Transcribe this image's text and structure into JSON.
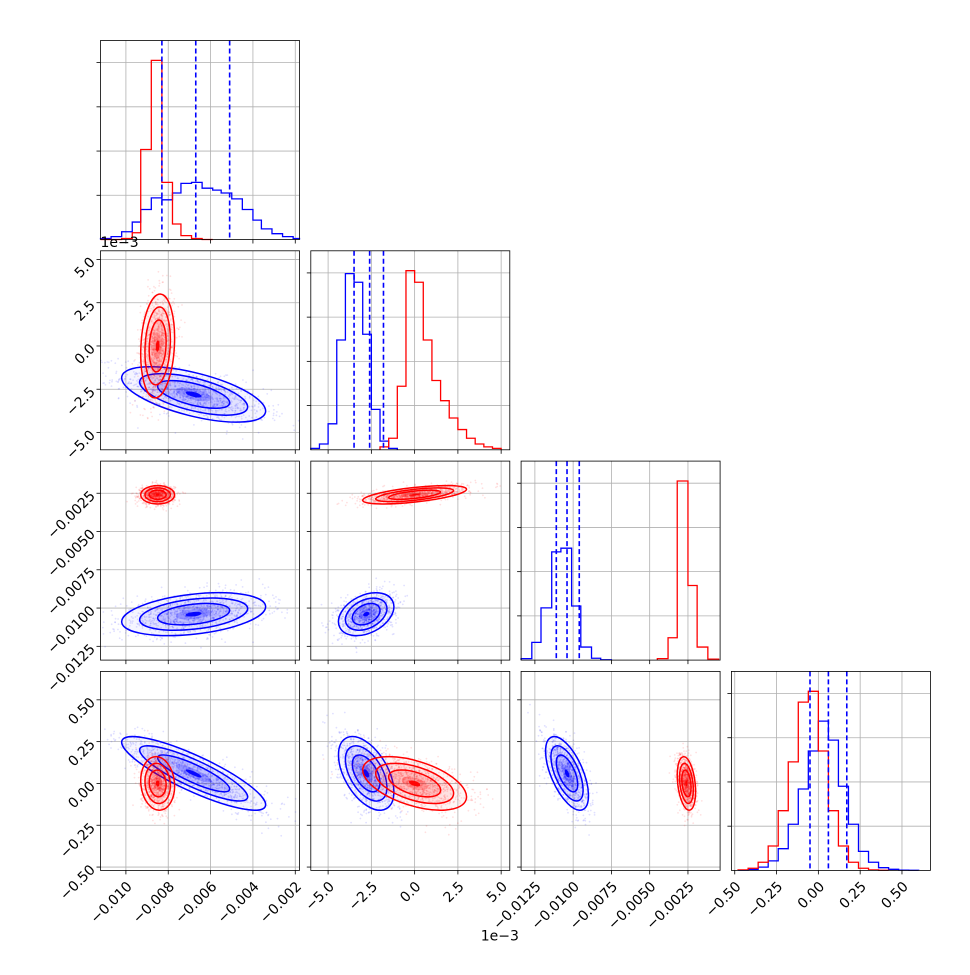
{
  "chart_data": {
    "type": "corner",
    "grid": true,
    "colors": {
      "series_a": "#0000ff",
      "series_b": "#ff0000"
    },
    "params": [
      {
        "range": [
          -0.0112,
          -0.0018
        ],
        "ticks": [
          -0.01,
          -0.008,
          -0.006,
          -0.004,
          -0.002
        ],
        "tick_labels": [
          "−0.010",
          "−0.008",
          "−0.006",
          "−0.004",
          "−0.002"
        ],
        "offset": ""
      },
      {
        "range": [
          -6.0,
          5.5
        ],
        "ticks": [
          -5.0,
          -2.5,
          0.0,
          2.5,
          5.0
        ],
        "tick_labels": [
          "−5.0",
          "−2.5",
          "0.0",
          "2.5",
          "5.0"
        ],
        "offset": "1e−3"
      },
      {
        "range": [
          -0.0134,
          -0.0004
        ],
        "ticks": [
          -0.0125,
          -0.01,
          -0.0075,
          -0.005,
          -0.0025
        ],
        "tick_labels": [
          "−0.0125",
          "−0.0100",
          "−0.0075",
          "−0.0050",
          "−0.0025"
        ],
        "offset": ""
      },
      {
        "range": [
          -0.52,
          0.67
        ],
        "ticks": [
          -0.5,
          -0.25,
          0.0,
          0.25,
          0.5
        ],
        "tick_labels": [
          "−0.50",
          "−0.25",
          "0.00",
          "0.25",
          "0.50"
        ],
        "offset": ""
      }
    ],
    "series": [
      {
        "color": "#0000ff",
        "means": [
          -0.0068,
          -2.8,
          -0.0104,
          0.06
        ],
        "sds": [
          0.0017,
          0.8,
          0.0007,
          0.11
        ],
        "quantiles": [
          [
            -0.0083,
            -0.0067,
            -0.0051
          ],
          [
            -3.5,
            -2.6,
            -1.8
          ],
          [
            -0.0111,
            -0.0104,
            -0.0096
          ],
          [
            -0.05,
            0.06,
            0.17
          ]
        ],
        "corr": {
          "0-1": -0.6,
          "0-2": 0.35,
          "0-3": -0.85,
          "1-2": 0.35,
          "1-3": -0.5,
          "2-3": -0.6
        },
        "hist": [
          {
            "edges": [
              -0.0112,
              -0.0107,
              -0.0102,
              -0.0097,
              -0.0093,
              -0.0088,
              -0.0083,
              -0.0078,
              -0.0074,
              -0.0069,
              -0.0064,
              -0.0059,
              -0.0055,
              -0.005,
              -0.0045,
              -0.004,
              -0.0036,
              -0.0031,
              -0.0026,
              -0.0021,
              -0.0018
            ],
            "counts": [
              0.2,
              0.6,
              1.6,
              3.6,
              6.2,
              8.6,
              8.2,
              9.6,
              11.6,
              11.8,
              10.6,
              10.2,
              9.6,
              8.4,
              6.2,
              4.0,
              2.2,
              1.2,
              0.6,
              0.2
            ]
          },
          {
            "edges": [
              -6.0,
              -5.5,
              -5.0,
              -4.5,
              -4.0,
              -3.5,
              -3.0,
              -2.5,
              -2.0,
              -1.5,
              -1.0
            ],
            "counts": [
              0.5,
              2.0,
              9.0,
              38.0,
              61.0,
              58.0,
              40.0,
              14.0,
              3.0,
              0.5
            ]
          },
          {
            "edges": [
              -0.0134,
              -0.0127,
              -0.0121,
              -0.0114,
              -0.0108,
              -0.0101,
              -0.0095,
              -0.0088,
              -0.0082,
              -0.0075
            ],
            "counts": [
              0.8,
              9.5,
              28.0,
              58.0,
              60.0,
              29.0,
              7.0,
              1.0,
              0.2
            ]
          },
          {
            "edges": [
              -0.48,
              -0.42,
              -0.36,
              -0.3,
              -0.24,
              -0.18,
              -0.12,
              -0.06,
              0.0,
              0.06,
              0.12,
              0.18,
              0.24,
              0.3,
              0.36,
              0.42,
              0.48,
              0.54,
              0.6
            ],
            "counts": [
              0.1,
              0.4,
              1.2,
              3.5,
              8.0,
              17.0,
              30.0,
              44.0,
              55.0,
              48.0,
              31.0,
              17.0,
              7.0,
              3.0,
              1.0,
              0.4,
              0.1,
              0.05
            ]
          }
        ]
      },
      {
        "color": "#ff0000",
        "means": [
          -0.0085,
          0.0,
          -0.0026,
          0.0
        ],
        "sds": [
          0.0004,
          1.5,
          0.0003,
          0.08
        ],
        "quantiles": [
          [
            -0.0089,
            -0.0085,
            -0.0081
          ],
          [
            -1.0,
            0.0,
            1.2
          ],
          [
            -0.0029,
            -0.0026,
            -0.0023
          ],
          [
            -0.07,
            0.0,
            0.07
          ]
        ],
        "corr": {
          "0-1": 0.15,
          "0-2": 0.0,
          "0-3": -0.1,
          "1-2": 0.6,
          "1-3": -0.5,
          "2-3": -0.3
        },
        "hist": [
          {
            "edges": [
              -0.0112,
              -0.0107,
              -0.0102,
              -0.0097,
              -0.0093,
              -0.0088,
              -0.0083,
              -0.0078,
              -0.0074,
              -0.0069,
              -0.0064,
              -0.0059
            ],
            "counts": [
              0.0,
              0.0,
              0.2,
              1.4,
              18.6,
              37.0,
              11.8,
              3.2,
              0.8,
              0.2,
              0.0
            ]
          },
          {
            "edges": [
              -2.0,
              -1.5,
              -1.0,
              -0.5,
              0.0,
              0.5,
              1.0,
              1.5,
              2.0,
              2.5,
              3.0,
              3.5,
              4.0,
              4.5,
              5.0
            ],
            "counts": [
              1.0,
              4.0,
              22.0,
              62.0,
              58.0,
              38.0,
              24.0,
              17.0,
              11.0,
              7.0,
              4.0,
              2.0,
              1.0,
              0.5
            ]
          },
          {
            "edges": [
              -0.0045,
              -0.0038,
              -0.0032,
              -0.0025,
              -0.0019,
              -0.0012,
              -0.0005
            ],
            "counts": [
              0.8,
              12.0,
              96.0,
              40.0,
              7.0,
              0.5
            ]
          },
          {
            "edges": [
              -0.48,
              -0.42,
              -0.36,
              -0.3,
              -0.24,
              -0.18,
              -0.12,
              -0.06,
              0.0,
              0.06,
              0.12,
              0.18,
              0.24,
              0.3,
              0.36,
              0.42
            ],
            "counts": [
              0.2,
              0.8,
              3.0,
              9.0,
              22.0,
              40.0,
              62.0,
              66.0,
              44.0,
              22.0,
              9.0,
              3.0,
              0.8,
              0.2,
              0.05
            ]
          }
        ]
      }
    ]
  }
}
